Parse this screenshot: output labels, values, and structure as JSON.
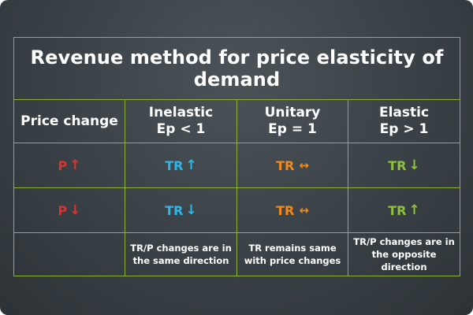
{
  "title": "Revenue method for price elasticity of demand",
  "headers": {
    "price_change": "Price change",
    "inelastic": "Inelastic\nEp < 1",
    "unitary": "Unitary\nEp = 1",
    "elastic": "Elastic\nEp > 1"
  },
  "rows": [
    {
      "price": {
        "label": "P",
        "arrow": "↑"
      },
      "inelastic": {
        "label": "TR",
        "arrow": "↑"
      },
      "unitary": {
        "label": "TR",
        "arrow": "↔"
      },
      "elastic": {
        "label": "TR",
        "arrow": "↓"
      }
    },
    {
      "price": {
        "label": "P",
        "arrow": "↓"
      },
      "inelastic": {
        "label": "TR",
        "arrow": "↓"
      },
      "unitary": {
        "label": "TR",
        "arrow": "↔"
      },
      "elastic": {
        "label": "TR",
        "arrow": "↑"
      }
    }
  ],
  "notes": {
    "inelastic": "TR/P changes are in\nthe same direction",
    "unitary": "TR remains same\nwith price changes",
    "elastic": "TR/P changes are in\nthe opposite direction"
  },
  "colors": {
    "grid": "#8fb33a",
    "price": "#e0312f",
    "inelastic": "#2fb6ea",
    "unitary": "#f08a1c",
    "elastic": "#8fc13e"
  }
}
